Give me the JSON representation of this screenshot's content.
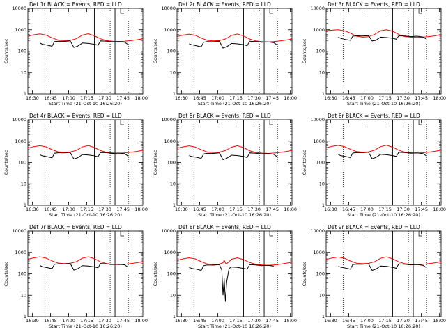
{
  "figure": {
    "x_tick_labels": [
      "16:30",
      "16:45",
      "17:00",
      "17:15",
      "17:30",
      "17:45",
      "18:00"
    ],
    "y_tick_labels": [
      "1",
      "10",
      "100",
      "1000",
      "10000"
    ],
    "ylabel": "Counts/sec",
    "xlabel": "Start Time (21-Oct-10 16:26:20)"
  },
  "chart_data": [
    {
      "type": "line",
      "title": "Det 1r BLACK = Events, RED = LLD",
      "ylabel": "Counts/sec",
      "xlabel": "Start Time (21-Oct-10 16:26:20)",
      "yscale": "log",
      "ylim": [
        1,
        10000
      ],
      "x_minutes_range": [
        0,
        95
      ],
      "series": [
        {
          "color": "#ff0000",
          "x": [
            0,
            5,
            10,
            15,
            20,
            25,
            30,
            35,
            40,
            45,
            50,
            55,
            60,
            65,
            70,
            75,
            80,
            85,
            90,
            95
          ],
          "values": [
            500,
            580,
            640,
            560,
            420,
            330,
            310,
            320,
            380,
            560,
            650,
            520,
            380,
            310,
            290,
            280,
            290,
            310,
            340,
            380
          ]
        },
        {
          "color": "#000000",
          "x": [
            10,
            12,
            16,
            20,
            22,
            25,
            30,
            35,
            38,
            41,
            43,
            45,
            50,
            55,
            58,
            60,
            65,
            70,
            75,
            80,
            83
          ],
          "values": [
            240,
            210,
            190,
            170,
            280,
            290,
            285,
            300,
            150,
            170,
            200,
            240,
            230,
            210,
            190,
            300,
            290,
            270,
            280,
            260,
            200
          ]
        }
      ],
      "vlines_dotted": [
        14,
        68,
        83
      ],
      "vlines_solid": [
        55,
        72
      ]
    },
    {
      "type": "line",
      "title": "Det 2r BLACK = Events, RED = LLD",
      "ylabel": "Counts/sec",
      "xlabel": "Start Time (21-Oct-10 16:26:20)",
      "yscale": "log",
      "ylim": [
        1,
        10000
      ],
      "x_minutes_range": [
        0,
        95
      ],
      "series": [
        {
          "color": "#ff0000",
          "x": [
            0,
            5,
            10,
            15,
            20,
            25,
            30,
            35,
            40,
            45,
            50,
            55,
            60,
            65,
            70,
            75,
            80,
            85,
            90,
            95
          ],
          "values": [
            480,
            560,
            620,
            550,
            410,
            320,
            300,
            310,
            370,
            540,
            630,
            510,
            370,
            300,
            280,
            270,
            280,
            300,
            330,
            370
          ]
        },
        {
          "color": "#000000",
          "x": [
            10,
            12,
            16,
            20,
            22,
            25,
            30,
            35,
            38,
            41,
            43,
            45,
            50,
            55,
            58,
            60,
            65,
            70,
            75,
            80,
            83
          ],
          "values": [
            220,
            200,
            180,
            160,
            260,
            280,
            275,
            290,
            140,
            160,
            190,
            230,
            220,
            200,
            180,
            290,
            280,
            260,
            270,
            250,
            190
          ]
        }
      ],
      "vlines_dotted": [
        14,
        68,
        83
      ],
      "vlines_solid": [
        55,
        72
      ]
    },
    {
      "type": "line",
      "title": "Det 3r BLACK = Events, RED = LLD",
      "ylabel": "Counts/sec",
      "xlabel": "Start Time (21-Oct-10 16:26:20)",
      "yscale": "log",
      "ylim": [
        1,
        10000
      ],
      "x_minutes_range": [
        0,
        95
      ],
      "series": [
        {
          "color": "#ff0000",
          "x": [
            0,
            5,
            10,
            15,
            20,
            25,
            30,
            35,
            40,
            45,
            50,
            55,
            60,
            65,
            70,
            75,
            80,
            85,
            90,
            95
          ],
          "values": [
            900,
            950,
            1000,
            900,
            700,
            500,
            450,
            470,
            600,
            900,
            1000,
            850,
            600,
            480,
            450,
            440,
            450,
            480,
            520,
            600
          ]
        },
        {
          "color": "#000000",
          "x": [
            10,
            12,
            16,
            20,
            22,
            25,
            30,
            35,
            38,
            41,
            43,
            45,
            50,
            55,
            58,
            60,
            65,
            70,
            75,
            80,
            83
          ],
          "values": [
            450,
            400,
            350,
            320,
            500,
            520,
            510,
            530,
            300,
            320,
            380,
            450,
            430,
            400,
            360,
            520,
            510,
            480,
            500,
            460,
            360
          ]
        }
      ],
      "vlines_dotted": [
        14,
        68,
        83
      ],
      "vlines_solid": [
        55,
        72
      ]
    },
    {
      "type": "line",
      "title": "Det 4r BLACK = Events, RED = LLD",
      "ylabel": "Counts/sec",
      "xlabel": "Start Time (21-Oct-10 16:26:20)",
      "yscale": "log",
      "ylim": [
        1,
        10000
      ],
      "x_minutes_range": [
        0,
        95
      ],
      "series": [
        {
          "color": "#ff0000",
          "x": [
            0,
            5,
            10,
            15,
            20,
            25,
            30,
            35,
            40,
            45,
            50,
            55,
            60,
            65,
            70,
            75,
            80,
            85,
            90,
            95
          ],
          "values": [
            470,
            550,
            610,
            540,
            400,
            315,
            300,
            310,
            365,
            530,
            620,
            500,
            360,
            300,
            280,
            270,
            280,
            300,
            330,
            370
          ]
        },
        {
          "color": "#000000",
          "x": [
            10,
            12,
            16,
            20,
            22,
            25,
            30,
            35,
            38,
            41,
            43,
            45,
            50,
            55,
            58,
            60,
            65,
            70,
            75,
            80,
            83
          ],
          "values": [
            230,
            205,
            185,
            165,
            270,
            285,
            280,
            295,
            145,
            165,
            195,
            235,
            225,
            205,
            185,
            295,
            285,
            265,
            275,
            255,
            195
          ]
        }
      ],
      "vlines_dotted": [
        14,
        68,
        83
      ],
      "vlines_solid": [
        55,
        72
      ]
    },
    {
      "type": "line",
      "title": "Det 5r BLACK = Events, RED = LLD",
      "ylabel": "Counts/sec",
      "xlabel": "Start Time (21-Oct-10 16:26:20)",
      "yscale": "log",
      "ylim": [
        1,
        10000
      ],
      "x_minutes_range": [
        0,
        95
      ],
      "series": [
        {
          "color": "#ff0000",
          "x": [
            0,
            5,
            10,
            15,
            20,
            25,
            30,
            35,
            40,
            45,
            50,
            55,
            60,
            65,
            70,
            75,
            80,
            85,
            90,
            95
          ],
          "values": [
            460,
            540,
            600,
            530,
            395,
            310,
            295,
            305,
            360,
            520,
            610,
            495,
            355,
            295,
            275,
            265,
            275,
            295,
            325,
            365
          ]
        },
        {
          "color": "#000000",
          "x": [
            10,
            12,
            16,
            20,
            22,
            25,
            30,
            35,
            38,
            41,
            43,
            45,
            50,
            55,
            58,
            60,
            65,
            70,
            75,
            80,
            83
          ],
          "values": [
            210,
            190,
            175,
            155,
            250,
            270,
            265,
            280,
            135,
            155,
            185,
            220,
            210,
            190,
            170,
            280,
            270,
            250,
            260,
            240,
            180
          ]
        }
      ],
      "vlines_dotted": [
        14,
        68,
        83
      ],
      "vlines_solid": [
        55,
        72
      ]
    },
    {
      "type": "line",
      "title": "Det 6r BLACK = Events, RED = LLD",
      "ylabel": "Counts/sec",
      "xlabel": "Start Time (21-Oct-10 16:26:20)",
      "yscale": "log",
      "ylim": [
        1,
        10000
      ],
      "x_minutes_range": [
        0,
        95
      ],
      "series": [
        {
          "color": "#ff0000",
          "x": [
            0,
            5,
            10,
            15,
            20,
            25,
            30,
            35,
            40,
            45,
            50,
            55,
            60,
            65,
            70,
            75,
            80,
            85,
            90,
            95
          ],
          "values": [
            490,
            570,
            630,
            555,
            415,
            325,
            305,
            315,
            375,
            550,
            640,
            515,
            375,
            305,
            285,
            275,
            285,
            305,
            335,
            375
          ]
        },
        {
          "color": "#000000",
          "x": [
            10,
            12,
            16,
            20,
            22,
            25,
            30,
            35,
            38,
            41,
            43,
            45,
            50,
            55,
            58,
            60,
            65,
            70,
            75,
            80,
            83
          ],
          "values": [
            235,
            210,
            190,
            170,
            275,
            290,
            285,
            300,
            150,
            170,
            200,
            240,
            230,
            210,
            190,
            300,
            290,
            270,
            280,
            260,
            200
          ]
        }
      ],
      "vlines_dotted": [
        14,
        68,
        83
      ],
      "vlines_solid": [
        55,
        72
      ]
    },
    {
      "type": "line",
      "title": "Det 7r BLACK = Events, RED = LLD",
      "ylabel": "Counts/sec",
      "xlabel": "Start Time (21-Oct-10 16:26:20)",
      "yscale": "log",
      "ylim": [
        1,
        10000
      ],
      "x_minutes_range": [
        0,
        95
      ],
      "series": [
        {
          "color": "#ff0000",
          "x": [
            0,
            5,
            10,
            15,
            20,
            25,
            30,
            35,
            40,
            45,
            50,
            55,
            60,
            65,
            70,
            75,
            80,
            85,
            90,
            95
          ],
          "values": [
            480,
            560,
            620,
            545,
            405,
            318,
            300,
            310,
            368,
            535,
            625,
            505,
            365,
            300,
            280,
            270,
            280,
            300,
            330,
            370
          ]
        },
        {
          "color": "#000000",
          "x": [
            10,
            12,
            16,
            20,
            22,
            25,
            30,
            35,
            38,
            41,
            43,
            45,
            50,
            55,
            58,
            60,
            65,
            70,
            75,
            80,
            83
          ],
          "values": [
            245,
            215,
            195,
            175,
            280,
            292,
            288,
            302,
            150,
            172,
            202,
            242,
            232,
            212,
            192,
            302,
            292,
            272,
            282,
            262,
            202
          ]
        }
      ],
      "vlines_dotted": [
        14,
        68,
        83
      ],
      "vlines_solid": [
        55,
        72
      ]
    },
    {
      "type": "line",
      "title": "Det 8r BLACK = Events, RED = LLD",
      "ylabel": "Counts/sec",
      "xlabel": "Start Time (21-Oct-10 16:26:20)",
      "yscale": "log",
      "ylim": [
        1,
        10000
      ],
      "x_minutes_range": [
        0,
        95
      ],
      "series": [
        {
          "color": "#ff0000",
          "x": [
            0,
            5,
            10,
            15,
            20,
            25,
            30,
            35,
            38,
            39,
            40,
            41,
            42,
            45,
            50,
            55,
            60,
            65,
            70,
            75,
            80,
            85,
            90,
            95
          ],
          "values": [
            420,
            500,
            560,
            500,
            370,
            290,
            275,
            285,
            330,
            430,
            320,
            300,
            330,
            480,
            560,
            460,
            340,
            280,
            260,
            250,
            260,
            280,
            310,
            350
          ]
        },
        {
          "color": "#000000",
          "x": [
            10,
            12,
            16,
            20,
            22,
            25,
            30,
            35,
            37,
            38,
            39,
            40,
            41,
            43,
            45,
            50,
            55,
            58,
            60,
            65,
            70,
            75,
            80
          ],
          "values": [
            200,
            180,
            165,
            145,
            240,
            260,
            255,
            270,
            150,
            10,
            60,
            5,
            40,
            180,
            210,
            200,
            180,
            165,
            270,
            260,
            240,
            250,
            230
          ]
        }
      ],
      "vlines_dotted": [
        14,
        68,
        83
      ],
      "vlines_solid": [
        55,
        72
      ]
    },
    {
      "type": "line",
      "title": "Det 9r BLACK = Events, RED = LLD",
      "ylabel": "Counts/sec",
      "xlabel": "Start Time (21-Oct-10 16:26:20)",
      "yscale": "log",
      "ylim": [
        1,
        10000
      ],
      "x_minutes_range": [
        0,
        95
      ],
      "series": [
        {
          "color": "#ff0000",
          "x": [
            0,
            5,
            10,
            15,
            20,
            25,
            30,
            35,
            40,
            45,
            50,
            55,
            60,
            65,
            70,
            75,
            80,
            85,
            90,
            95
          ],
          "values": [
            470,
            550,
            610,
            540,
            400,
            315,
            298,
            308,
            366,
            530,
            620,
            500,
            362,
            298,
            278,
            268,
            278,
            298,
            328,
            368
          ]
        },
        {
          "color": "#000000",
          "x": [
            10,
            12,
            16,
            20,
            22,
            25,
            30,
            35,
            38,
            41,
            43,
            45,
            50,
            55,
            58,
            60,
            65,
            70,
            75,
            80,
            83
          ],
          "values": [
            225,
            205,
            185,
            165,
            268,
            283,
            278,
            293,
            145,
            165,
            195,
            232,
            222,
            202,
            182,
            292,
            282,
            262,
            272,
            252,
            192
          ]
        }
      ],
      "vlines_dotted": [
        14,
        68,
        83
      ],
      "vlines_solid": [
        55,
        72
      ]
    }
  ]
}
